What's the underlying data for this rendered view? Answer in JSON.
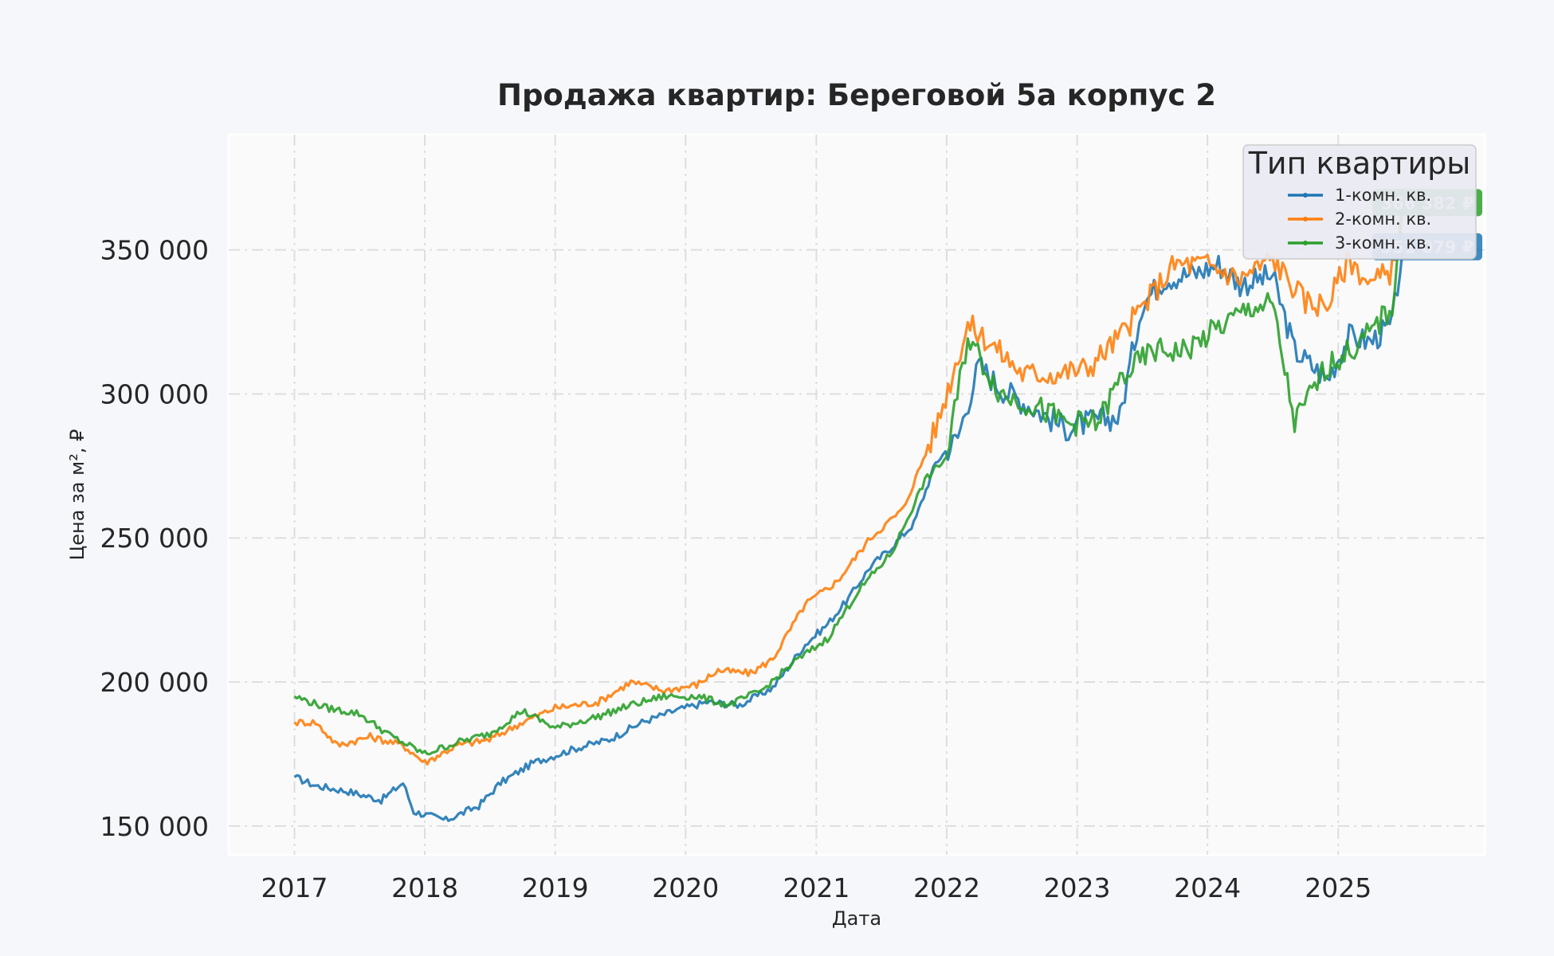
{
  "chart_data": {
    "type": "line",
    "title": "Продажа квартир: Береговой 5а корпус 2",
    "xlabel": "Дата",
    "ylabel": "Цена за м², ₽",
    "xlim": [
      "2016-07-01",
      "2026-02-15"
    ],
    "ylim": [
      140000,
      390000
    ],
    "x_ticks": [
      "2017",
      "2018",
      "2019",
      "2020",
      "2021",
      "2022",
      "2023",
      "2024",
      "2025"
    ],
    "y_ticks": [
      "150 000",
      "200 000",
      "250 000",
      "300 000",
      "350 000"
    ],
    "grid": true,
    "legend": {
      "title": "Тип квартиры",
      "placement": "top-right"
    },
    "colors": {
      "1": "#1f77b4",
      "2": "#ff7f0e",
      "3": "#2ca02c"
    },
    "series": [
      {
        "name": "1-комн. кв.",
        "color": "#1f77b4",
        "points": [
          [
            "2017-01",
            167000
          ],
          [
            "2017-03",
            164000
          ],
          [
            "2017-06",
            162000
          ],
          [
            "2017-09",
            159000
          ],
          [
            "2017-11",
            165000
          ],
          [
            "2017-12",
            155000
          ],
          [
            "2018-03",
            152000
          ],
          [
            "2018-06",
            157000
          ],
          [
            "2018-08",
            165000
          ],
          [
            "2018-11",
            172000
          ],
          [
            "2019-03",
            177000
          ],
          [
            "2019-06",
            180000
          ],
          [
            "2019-09",
            186000
          ],
          [
            "2019-12",
            190000
          ],
          [
            "2020-03",
            193000
          ],
          [
            "2020-06",
            192000
          ],
          [
            "2020-09",
            198000
          ],
          [
            "2020-12",
            213000
          ],
          [
            "2021-02",
            220000
          ],
          [
            "2021-04",
            229000
          ],
          [
            "2021-06",
            240000
          ],
          [
            "2021-08",
            247000
          ],
          [
            "2021-10",
            255000
          ],
          [
            "2021-12",
            276000
          ],
          [
            "2022-02",
            285000
          ],
          [
            "2022-04",
            310000
          ],
          [
            "2022-06",
            302000
          ],
          [
            "2022-09",
            295000
          ],
          [
            "2022-12",
            288000
          ],
          [
            "2023-03",
            291000
          ],
          [
            "2023-05",
            292000
          ],
          [
            "2023-07",
            331000
          ],
          [
            "2023-09",
            340000
          ],
          [
            "2023-12",
            342000
          ],
          [
            "2024-02",
            345000
          ],
          [
            "2024-04",
            338000
          ],
          [
            "2024-07",
            341000
          ],
          [
            "2024-09",
            315000
          ],
          [
            "2024-12",
            305000
          ],
          [
            "2025-02",
            320000
          ],
          [
            "2025-04",
            318000
          ],
          [
            "2025-06",
            324000
          ],
          [
            "2025-07",
            351079
          ]
        ]
      },
      {
        "name": "2-комн. кв.",
        "color": "#ff7f0e",
        "points": [
          [
            "2017-01",
            186000
          ],
          [
            "2017-03",
            186000
          ],
          [
            "2017-05",
            178000
          ],
          [
            "2017-08",
            181000
          ],
          [
            "2017-11",
            178000
          ],
          [
            "2018-01",
            172000
          ],
          [
            "2018-04",
            178000
          ],
          [
            "2018-07",
            180000
          ],
          [
            "2018-10",
            186000
          ],
          [
            "2019-01",
            191000
          ],
          [
            "2019-05",
            193000
          ],
          [
            "2019-08",
            200000
          ],
          [
            "2019-11",
            197000
          ],
          [
            "2020-02",
            199000
          ],
          [
            "2020-04",
            204000
          ],
          [
            "2020-07",
            203000
          ],
          [
            "2020-09",
            208000
          ],
          [
            "2020-12",
            227000
          ],
          [
            "2021-03",
            235000
          ],
          [
            "2021-06",
            250000
          ],
          [
            "2021-09",
            260000
          ],
          [
            "2021-12",
            288000
          ],
          [
            "2022-03",
            324000
          ],
          [
            "2022-05",
            318000
          ],
          [
            "2022-08",
            307000
          ],
          [
            "2022-11",
            307000
          ],
          [
            "2023-02",
            309000
          ],
          [
            "2023-05",
            320000
          ],
          [
            "2023-08",
            335000
          ],
          [
            "2023-10",
            345000
          ],
          [
            "2024-01",
            345000
          ],
          [
            "2024-04",
            340000
          ],
          [
            "2024-07",
            347000
          ],
          [
            "2024-10",
            332000
          ],
          [
            "2024-12",
            331000
          ],
          [
            "2025-02",
            347000
          ],
          [
            "2025-04",
            338000
          ],
          [
            "2025-06",
            343000
          ],
          [
            "2025-07",
            366382
          ]
        ]
      },
      {
        "name": "3-комн. кв.",
        "color": "#2ca02c",
        "points": [
          [
            "2017-01",
            195000
          ],
          [
            "2017-04",
            191000
          ],
          [
            "2017-07",
            189000
          ],
          [
            "2017-10",
            181000
          ],
          [
            "2018-01",
            175000
          ],
          [
            "2018-04",
            179000
          ],
          [
            "2018-07",
            182000
          ],
          [
            "2018-10",
            190000
          ],
          [
            "2019-01",
            184000
          ],
          [
            "2019-05",
            188000
          ],
          [
            "2019-08",
            192000
          ],
          [
            "2019-11",
            195000
          ],
          [
            "2020-02",
            195000
          ],
          [
            "2020-05",
            192000
          ],
          [
            "2020-08",
            197000
          ],
          [
            "2020-11",
            207000
          ],
          [
            "2021-02",
            215000
          ],
          [
            "2021-05",
            232000
          ],
          [
            "2021-08",
            245000
          ],
          [
            "2021-11",
            270000
          ],
          [
            "2022-01",
            278000
          ],
          [
            "2022-03",
            320000
          ],
          [
            "2022-06",
            300000
          ],
          [
            "2022-09",
            296000
          ],
          [
            "2022-12",
            290000
          ],
          [
            "2023-03",
            290000
          ],
          [
            "2023-05",
            305000
          ],
          [
            "2023-08",
            315000
          ],
          [
            "2023-11",
            315000
          ],
          [
            "2024-02",
            323000
          ],
          [
            "2024-05",
            330000
          ],
          [
            "2024-07",
            331000
          ],
          [
            "2024-09",
            290000
          ],
          [
            "2024-12",
            310000
          ],
          [
            "2025-03",
            317000
          ],
          [
            "2025-06",
            330000
          ],
          [
            "2025-07",
            366382
          ]
        ]
      }
    ],
    "annotations": [
      {
        "label": "366 382 ₽",
        "y": 366382,
        "series": "3-комн. кв.",
        "color": "#2ca02c"
      },
      {
        "label": "351 079 ₽",
        "y": 351079,
        "series": "1-комн. кв.",
        "color": "#1f77b4"
      }
    ]
  }
}
